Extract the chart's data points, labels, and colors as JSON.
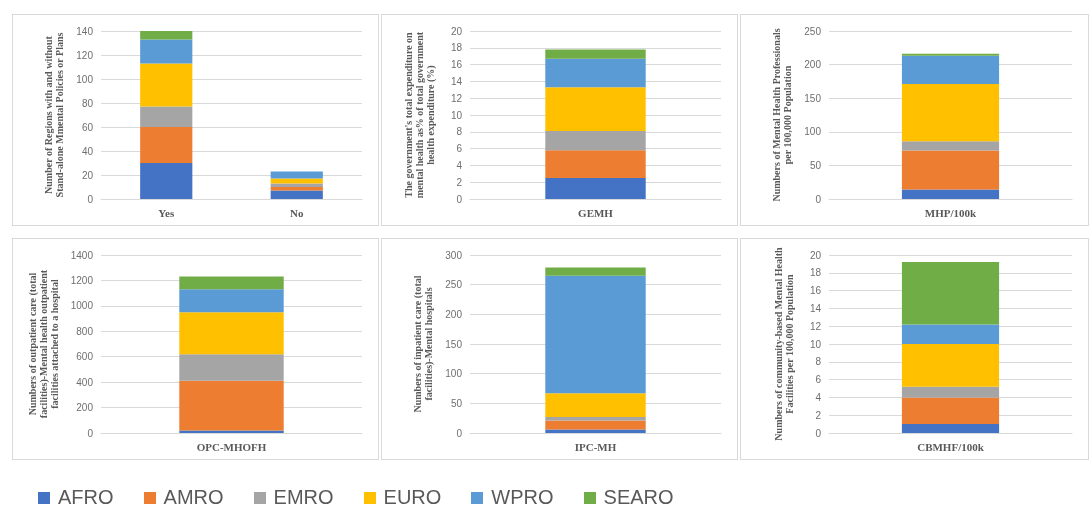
{
  "chart_data": [
    {
      "type": "bar",
      "stacked": true,
      "grid": "y",
      "legend": "bottom",
      "ylabel": "Number of Regions with and without Stand-alone Mmental Policies or Plans",
      "categories": [
        "Yes",
        "No"
      ],
      "ylim": [
        0,
        140
      ],
      "yticks": [
        0,
        20,
        40,
        60,
        80,
        100,
        120,
        140
      ],
      "series": [
        {
          "name": "AFRO",
          "color": "#4472c4",
          "values": [
            30,
            7
          ]
        },
        {
          "name": "AMRO",
          "color": "#ed7d31",
          "values": [
            30,
            3
          ]
        },
        {
          "name": "EMRO",
          "color": "#a5a5a5",
          "values": [
            17,
            3
          ]
        },
        {
          "name": "EURO",
          "color": "#ffc000",
          "values": [
            36,
            4
          ]
        },
        {
          "name": "WPRO",
          "color": "#5b9bd5",
          "values": [
            20,
            6
          ]
        },
        {
          "name": "SEARO",
          "color": "#70ad47",
          "values": [
            7,
            0
          ]
        }
      ]
    },
    {
      "type": "bar",
      "stacked": true,
      "grid": "y",
      "ylabel": "The government's total expenditure on mental health as% of total government health expenditure (%)",
      "categories": [
        "GEMH"
      ],
      "ylim": [
        0,
        20
      ],
      "yticks": [
        0,
        2,
        4,
        6,
        8,
        10,
        12,
        14,
        16,
        18,
        20
      ],
      "series": [
        {
          "color": "#4472c4",
          "values": [
            2.5
          ]
        },
        {
          "color": "#ed7d31",
          "values": [
            3.3
          ]
        },
        {
          "color": "#a5a5a5",
          "values": [
            2.3
          ]
        },
        {
          "color": "#ffc000",
          "values": [
            5.2
          ]
        },
        {
          "color": "#5b9bd5",
          "values": [
            3.4
          ]
        },
        {
          "color": "#70ad47",
          "values": [
            1.1
          ]
        }
      ]
    },
    {
      "type": "bar",
      "stacked": true,
      "grid": "y",
      "ylabel": "Numbers of Mental Health Professionals per 100,000 Population",
      "categories": [
        "MHP/100k"
      ],
      "ylim": [
        0,
        250
      ],
      "yticks": [
        0,
        50,
        100,
        150,
        200,
        250
      ],
      "series": [
        {
          "color": "#4472c4",
          "values": [
            14
          ]
        },
        {
          "color": "#ed7d31",
          "values": [
            58
          ]
        },
        {
          "color": "#a5a5a5",
          "values": [
            14
          ]
        },
        {
          "color": "#ffc000",
          "values": [
            85
          ]
        },
        {
          "color": "#5b9bd5",
          "values": [
            42
          ]
        },
        {
          "color": "#70ad47",
          "values": [
            3
          ]
        }
      ]
    },
    {
      "type": "bar",
      "stacked": true,
      "grid": "y",
      "ylabel": "Numbers of outpatient care (total facilities)-Mental health outpatient facilities attached to a hospital",
      "categories": [
        "OPC-MHOFH"
      ],
      "ylim": [
        0,
        1400
      ],
      "yticks": [
        0,
        200,
        400,
        600,
        800,
        1000,
        1200,
        1400
      ],
      "series": [
        {
          "color": "#4472c4",
          "values": [
            20
          ]
        },
        {
          "color": "#ed7d31",
          "values": [
            390
          ]
        },
        {
          "color": "#a5a5a5",
          "values": [
            210
          ]
        },
        {
          "color": "#ffc000",
          "values": [
            330
          ]
        },
        {
          "color": "#5b9bd5",
          "values": [
            180
          ]
        },
        {
          "color": "#70ad47",
          "values": [
            100
          ]
        }
      ]
    },
    {
      "type": "bar",
      "stacked": true,
      "grid": "y",
      "ylabel": "Numbers of inpatient care (total facilities)-Mental hospitals",
      "categories": [
        "IPC-MH"
      ],
      "ylim": [
        0,
        300
      ],
      "yticks": [
        0,
        50,
        100,
        150,
        200,
        250,
        300
      ],
      "series": [
        {
          "color": "#4472c4",
          "values": [
            6
          ]
        },
        {
          "color": "#ed7d31",
          "values": [
            15
          ]
        },
        {
          "color": "#a5a5a5",
          "values": [
            6
          ]
        },
        {
          "color": "#ffc000",
          "values": [
            40
          ]
        },
        {
          "color": "#5b9bd5",
          "values": [
            198
          ]
        },
        {
          "color": "#70ad47",
          "values": [
            14
          ]
        }
      ]
    },
    {
      "type": "bar",
      "stacked": true,
      "grid": "y",
      "ylabel": "Numbers of community-based Mental Health Facilities per 100,000 Population",
      "categories": [
        "CBMHF/100k"
      ],
      "ylim": [
        0,
        20
      ],
      "yticks": [
        0,
        2,
        4,
        6,
        8,
        10,
        12,
        14,
        16,
        18,
        20
      ],
      "series": [
        {
          "color": "#4472c4",
          "values": [
            1
          ]
        },
        {
          "color": "#ed7d31",
          "values": [
            3
          ]
        },
        {
          "color": "#a5a5a5",
          "values": [
            1.2
          ]
        },
        {
          "color": "#ffc000",
          "values": [
            4.8
          ]
        },
        {
          "color": "#5b9bd5",
          "values": [
            2.2
          ]
        },
        {
          "color": "#70ad47",
          "values": [
            7
          ]
        }
      ]
    }
  ]
}
